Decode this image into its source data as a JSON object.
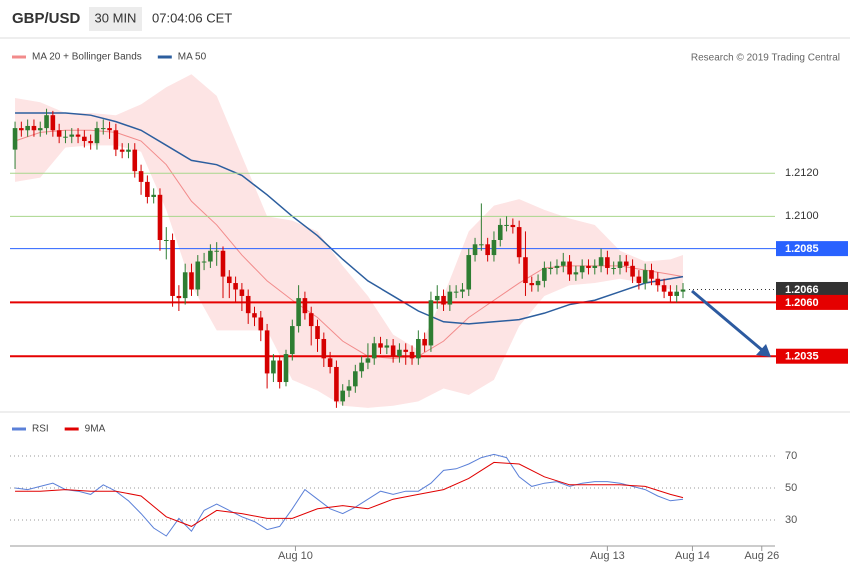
{
  "chart_data": [
    {
      "type": "candlestick",
      "title": "GBP/USD",
      "subtitle": "30 MIN",
      "time": "07:04:06 CET",
      "source": "Research © 2019 Trading Central",
      "up_color": "#2e7d32",
      "down_color": "#d50000",
      "xlim": [
        -0.8,
        120.6
      ],
      "ylim": [
        1.201,
        1.2168
      ],
      "x": [
        0,
        1,
        2,
        3,
        4,
        5,
        6,
        7,
        8,
        9,
        10,
        11,
        12,
        13,
        14,
        15,
        16,
        17,
        18,
        19,
        20,
        21,
        22,
        23,
        24,
        25,
        26,
        27,
        28,
        29,
        30,
        31,
        32,
        33,
        34,
        35,
        36,
        37,
        38,
        39,
        40,
        41,
        42,
        43,
        44,
        45,
        46,
        47,
        48,
        49,
        50,
        51,
        52,
        53,
        54,
        55,
        56,
        57,
        58,
        59,
        60,
        61,
        62,
        63,
        64,
        65,
        66,
        67,
        68,
        69,
        70,
        71,
        72,
        73,
        74,
        75,
        76,
        77,
        78,
        79,
        80,
        81,
        82,
        83,
        84,
        85,
        86,
        87,
        88,
        89,
        90,
        91,
        92,
        93,
        94,
        95,
        96,
        97,
        98,
        99,
        100,
        101,
        102,
        103,
        104,
        105,
        106
      ],
      "open": [
        1.2131,
        1.2141,
        1.214,
        1.2142,
        1.214,
        1.2141,
        1.2147,
        1.214,
        1.2137,
        1.2137,
        1.2138,
        1.2137,
        1.2135,
        1.2134,
        1.2141,
        1.2141,
        1.214,
        1.2131,
        1.213,
        1.2131,
        1.2121,
        1.2116,
        1.2109,
        1.211,
        1.2089,
        1.2089,
        1.2063,
        1.2062,
        1.2074,
        1.2066,
        1.2079,
        1.2079,
        1.2084,
        1.2084,
        1.2072,
        1.2069,
        1.2066,
        1.2063,
        1.2055,
        1.2053,
        1.2047,
        1.2027,
        1.2033,
        1.2023,
        1.2036,
        1.2049,
        1.2062,
        1.2055,
        1.2049,
        1.2043,
        1.2034,
        1.203,
        1.2014,
        1.2019,
        1.2021,
        1.2028,
        1.2032,
        1.2034,
        1.2041,
        1.2039,
        1.204,
        1.2035,
        1.2038,
        1.2037,
        1.2034,
        1.2043,
        1.204,
        1.2061,
        1.2063,
        1.2059,
        1.2065,
        1.2065,
        1.2066,
        1.2082,
        1.2087,
        1.2087,
        1.2082,
        1.2089,
        1.2096,
        1.2096,
        1.2095,
        1.2081,
        1.2069,
        1.2068,
        1.207,
        1.2076,
        1.2076,
        1.2077,
        1.2079,
        1.2073,
        1.2074,
        1.2077,
        1.2076,
        1.2077,
        1.2081,
        1.2076,
        1.2076,
        1.2079,
        1.2077,
        1.2072,
        1.2069,
        1.2075,
        1.2071,
        1.2068,
        1.2065,
        1.2063,
        1.2065
      ],
      "high": [
        1.2144,
        1.2144,
        1.2145,
        1.2145,
        1.2144,
        1.215,
        1.2149,
        1.2143,
        1.214,
        1.2141,
        1.2141,
        1.214,
        1.2138,
        1.2144,
        1.2145,
        1.2144,
        1.2143,
        1.2134,
        1.2134,
        1.2134,
        1.2124,
        1.2119,
        1.2113,
        1.2113,
        1.2095,
        1.2092,
        1.2068,
        1.2078,
        1.2078,
        1.2082,
        1.2083,
        1.2087,
        1.2088,
        1.2086,
        1.2075,
        1.2072,
        1.2069,
        1.2066,
        1.2058,
        1.2056,
        1.205,
        1.2036,
        1.2035,
        1.2038,
        1.2052,
        1.2068,
        1.2065,
        1.2058,
        1.2052,
        1.2046,
        1.2037,
        1.2033,
        1.2022,
        1.2024,
        1.2031,
        1.2035,
        1.2041,
        1.2044,
        1.2044,
        1.2043,
        1.2043,
        1.2041,
        1.2041,
        1.204,
        1.2047,
        1.2046,
        1.2065,
        1.2068,
        1.2066,
        1.2068,
        1.2068,
        1.2069,
        1.2085,
        1.209,
        1.2106,
        1.209,
        1.2093,
        1.2099,
        1.21,
        1.2099,
        1.2098,
        1.2093,
        1.2072,
        1.2073,
        1.2079,
        1.2079,
        1.208,
        1.2083,
        1.2082,
        1.2077,
        1.208,
        1.208,
        1.208,
        1.2085,
        1.2084,
        1.2079,
        1.2082,
        1.2082,
        1.208,
        1.2075,
        1.2078,
        1.2078,
        1.2074,
        1.2071,
        1.2068,
        1.2068,
        1.2069
      ],
      "low": [
        1.2122,
        1.2137,
        1.2137,
        1.2137,
        1.2137,
        1.2138,
        1.2137,
        1.2134,
        1.2134,
        1.2134,
        1.2134,
        1.2132,
        1.2131,
        1.2131,
        1.2138,
        1.2136,
        1.2128,
        1.2127,
        1.2127,
        1.2118,
        1.211,
        1.2106,
        1.2106,
        1.2084,
        1.208,
        1.2058,
        1.2056,
        1.2059,
        1.2063,
        1.2063,
        1.2075,
        1.2076,
        1.2077,
        1.2062,
        1.2062,
        1.206,
        1.2056,
        1.205,
        1.2049,
        1.2042,
        1.202,
        1.2023,
        1.202,
        1.2021,
        1.2033,
        1.2046,
        1.2052,
        1.204,
        1.2037,
        1.203,
        1.2027,
        1.2011,
        1.2012,
        1.2016,
        1.2018,
        1.2025,
        1.2029,
        1.2031,
        1.2036,
        1.2036,
        1.2032,
        1.2032,
        1.2031,
        1.2031,
        1.2031,
        1.2037,
        1.2037,
        1.2057,
        1.2056,
        1.2056,
        1.2062,
        1.2062,
        1.2063,
        1.2079,
        1.2084,
        1.2079,
        1.2079,
        1.2086,
        1.2093,
        1.2092,
        1.2078,
        1.2063,
        1.2065,
        1.2065,
        1.2067,
        1.2073,
        1.2073,
        1.2074,
        1.207,
        1.207,
        1.2071,
        1.2073,
        1.2073,
        1.2074,
        1.2073,
        1.2073,
        1.2073,
        1.2074,
        1.2069,
        1.2066,
        1.2066,
        1.2068,
        1.2065,
        1.2062,
        1.206,
        1.206,
        1.2062
      ],
      "close": [
        1.2141,
        1.214,
        1.2142,
        1.214,
        1.2141,
        1.2147,
        1.214,
        1.2137,
        1.2137,
        1.2138,
        1.2137,
        1.2135,
        1.2134,
        1.2141,
        1.2141,
        1.214,
        1.2131,
        1.213,
        1.2131,
        1.2121,
        1.2116,
        1.2109,
        1.211,
        1.2089,
        1.2089,
        1.2063,
        1.2062,
        1.2074,
        1.2066,
        1.2079,
        1.2079,
        1.2084,
        1.2084,
        1.2072,
        1.2069,
        1.2066,
        1.2063,
        1.2055,
        1.2053,
        1.2047,
        1.2027,
        1.2033,
        1.2023,
        1.2036,
        1.2049,
        1.2062,
        1.2055,
        1.2049,
        1.2043,
        1.2034,
        1.203,
        1.2014,
        1.2019,
        1.2021,
        1.2028,
        1.2032,
        1.2034,
        1.2041,
        1.2039,
        1.204,
        1.2035,
        1.2038,
        1.2037,
        1.2034,
        1.2043,
        1.204,
        1.2061,
        1.2063,
        1.2059,
        1.2065,
        1.2065,
        1.2066,
        1.2082,
        1.2087,
        1.2087,
        1.2082,
        1.2089,
        1.2096,
        1.2096,
        1.2095,
        1.2081,
        1.2069,
        1.2068,
        1.207,
        1.2076,
        1.2076,
        1.2077,
        1.2079,
        1.2073,
        1.2074,
        1.2077,
        1.2076,
        1.2077,
        1.2081,
        1.2076,
        1.2076,
        1.2079,
        1.2077,
        1.2072,
        1.2069,
        1.2075,
        1.2071,
        1.2068,
        1.2065,
        1.2063,
        1.2065,
        1.2066
      ],
      "series": [
        {
          "name": "MA 20 + Bollinger Bands",
          "kind": "bollinger",
          "color": "#f28b8b",
          "band_color": "#fde4e4",
          "x": [
            0,
            4,
            8,
            12,
            16,
            20,
            24,
            28,
            32,
            36,
            40,
            44,
            48,
            52,
            56,
            60,
            64,
            68,
            72,
            76,
            80,
            84,
            88,
            92,
            96,
            100,
            104,
            106
          ],
          "values": [
            1.2135,
            1.2139,
            1.214,
            1.214,
            1.2139,
            1.2135,
            1.2124,
            1.2107,
            1.2096,
            1.2082,
            1.207,
            1.2061,
            1.2053,
            1.2042,
            1.2035,
            1.2034,
            1.2035,
            1.2042,
            1.2053,
            1.2061,
            1.2069,
            1.2076,
            1.2077,
            1.2077,
            1.2077,
            1.2075,
            1.2073,
            1.2072
          ],
          "upper": [
            1.2155,
            1.2153,
            1.2148,
            1.2148,
            1.2147,
            1.2152,
            1.216,
            1.2166,
            1.2156,
            1.2128,
            1.21,
            1.2098,
            1.2093,
            1.2077,
            1.2063,
            1.2045,
            1.2038,
            1.2063,
            1.2093,
            1.2105,
            1.2108,
            1.2103,
            1.2099,
            1.2096,
            1.2084,
            1.2079,
            1.208,
            1.2082
          ],
          "lower": [
            1.2116,
            1.2118,
            1.2132,
            1.2133,
            1.2133,
            1.213,
            1.2103,
            1.2068,
            1.2047,
            1.2047,
            1.2047,
            1.2024,
            1.2019,
            1.2012,
            1.2011,
            1.2012,
            1.2014,
            1.202,
            1.2017,
            1.2024,
            1.2049,
            1.2063,
            1.2068,
            1.2069,
            1.2071,
            1.2069,
            1.2066,
            1.2065
          ]
        },
        {
          "name": "MA 50",
          "kind": "line",
          "color": "#2c5e9e",
          "x": [
            0,
            4,
            8,
            12,
            16,
            20,
            24,
            28,
            32,
            36,
            40,
            44,
            48,
            52,
            56,
            60,
            64,
            68,
            72,
            76,
            80,
            84,
            88,
            92,
            96,
            100,
            104,
            106
          ],
          "values": [
            1.2148,
            1.2148,
            1.2148,
            1.2147,
            1.2144,
            1.214,
            1.2133,
            1.2126,
            1.2124,
            1.2119,
            1.211,
            1.21,
            1.2091,
            1.208,
            1.207,
            1.2063,
            1.2056,
            1.2051,
            1.205,
            1.2051,
            1.2052,
            1.2055,
            1.2059,
            1.2061,
            1.2065,
            1.2069,
            1.2071,
            1.2072
          ]
        }
      ],
      "levels": [
        {
          "value": 1.212,
          "label": "1.2120",
          "color": "#a8d68c",
          "style": "thin"
        },
        {
          "value": 1.21,
          "label": "1.2100",
          "color": "#a8d68c",
          "style": "thin"
        },
        {
          "value": 1.2085,
          "label": "1.2085",
          "color": "#2962ff",
          "style": "box"
        },
        {
          "value": 1.2066,
          "label": "1.2066",
          "color": "#333333",
          "style": "dotted-box"
        },
        {
          "value": 1.206,
          "label": "1.2060",
          "color": "#e50000",
          "style": "thick-box"
        },
        {
          "value": 1.2035,
          "label": "1.2035",
          "color": "#e50000",
          "style": "thick-box"
        }
      ]
    },
    {
      "type": "line",
      "xlim": [
        -0.8,
        120.6
      ],
      "ylim": [
        15,
        80
      ],
      "yticks": [
        30,
        50,
        70
      ],
      "grid": true,
      "xticks": [
        {
          "value": 44.5,
          "label": "Aug 10"
        },
        {
          "value": 94,
          "label": "Aug 13"
        },
        {
          "value": 107.5,
          "label": "Aug 14"
        },
        {
          "value": 118.5,
          "label": "Aug 26"
        }
      ],
      "series": [
        {
          "name": "RSI",
          "color": "#5b80d8",
          "x": [
            0,
            2,
            4,
            6,
            8,
            10,
            12,
            14,
            16,
            18,
            20,
            22,
            24,
            26,
            28,
            30,
            32,
            34,
            36,
            38,
            40,
            42,
            44,
            46,
            48,
            50,
            52,
            54,
            56,
            58,
            60,
            62,
            64,
            66,
            68,
            70,
            72,
            74,
            76,
            78,
            80,
            82,
            84,
            86,
            88,
            90,
            92,
            94,
            96,
            98,
            100,
            102,
            104,
            106
          ],
          "values": [
            50,
            49,
            51,
            53,
            49,
            48,
            46,
            52,
            48,
            42,
            34,
            25,
            20,
            31,
            23,
            36,
            40,
            36,
            32,
            29,
            24,
            26,
            37,
            49,
            43,
            37,
            34,
            38,
            43,
            48,
            46,
            48,
            48,
            53,
            61,
            62,
            65,
            69,
            71,
            69,
            57,
            51,
            53,
            54,
            51,
            53,
            54,
            54,
            53,
            51,
            49,
            45,
            42,
            43
          ]
        },
        {
          "name": "9MA",
          "color": "#e00000",
          "x": [
            0,
            4,
            8,
            12,
            16,
            20,
            24,
            28,
            32,
            36,
            40,
            44,
            48,
            52,
            56,
            60,
            64,
            68,
            72,
            76,
            80,
            84,
            88,
            92,
            96,
            100,
            104,
            106
          ],
          "values": [
            48,
            48,
            49,
            48,
            48,
            45,
            32,
            26,
            36,
            34,
            31,
            31,
            37,
            39,
            37,
            43,
            46,
            49,
            56,
            66,
            65,
            57,
            52,
            52,
            52,
            51,
            46,
            44
          ]
        }
      ]
    }
  ]
}
